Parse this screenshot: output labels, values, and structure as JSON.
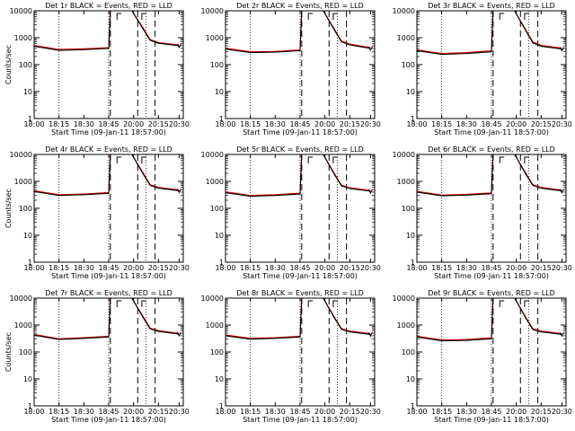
{
  "figure": {
    "ylabel": "Counts/sec",
    "xlabel": "Start Time (09-Jan-11 18:57:00)",
    "yscale": "log",
    "ylim": [
      1,
      10000
    ],
    "ytick_labels": [
      "1",
      "10",
      "100",
      "1000",
      "10000"
    ],
    "xtick_labels": [
      "18:00",
      "18:15",
      "18:30",
      "18:45",
      "20:00",
      "20:15",
      "20:30"
    ],
    "series_colors": {
      "events": "#000000",
      "lld": "#e00000"
    }
  },
  "chart_data": [
    {
      "type": "line",
      "title": "Det 1r BLACK = Events, RED = LLD",
      "x": [
        0,
        30,
        60,
        90,
        92,
        105,
        118,
        132,
        140,
        150,
        175
      ],
      "series": [
        {
          "values": [
            480,
            340,
            360,
            400,
            11000,
            11000,
            11000,
            2000,
            800,
            620,
            500
          ]
        },
        {
          "values": [
            520,
            370,
            390,
            430,
            11000,
            11000,
            11000,
            2200,
            860,
            660,
            540
          ]
        }
      ]
    },
    {
      "type": "line",
      "title": "Det 2r BLACK = Events, RED = LLD",
      "x": [
        0,
        30,
        60,
        90,
        92,
        105,
        118,
        132,
        140,
        150,
        175
      ],
      "series": [
        {
          "values": [
            380,
            280,
            290,
            330,
            11000,
            11000,
            11000,
            1800,
            700,
            540,
            400
          ]
        },
        {
          "values": [
            410,
            300,
            310,
            355,
            11000,
            11000,
            11000,
            1950,
            760,
            580,
            430
          ]
        }
      ]
    },
    {
      "type": "line",
      "title": "Det 3r BLACK = Events, RED = LLD",
      "x": [
        0,
        30,
        60,
        90,
        92,
        105,
        118,
        132,
        140,
        150,
        175
      ],
      "series": [
        {
          "values": [
            330,
            240,
            260,
            300,
            11000,
            11000,
            11000,
            1700,
            640,
            480,
            380
          ]
        },
        {
          "values": [
            355,
            260,
            280,
            325,
            11000,
            11000,
            11000,
            1850,
            690,
            520,
            410
          ]
        }
      ]
    },
    {
      "type": "line",
      "title": "Det 4r BLACK = Events, RED = LLD",
      "x": [
        0,
        30,
        60,
        90,
        92,
        105,
        118,
        132,
        140,
        150,
        175
      ],
      "series": [
        {
          "values": [
            420,
            300,
            320,
            360,
            11000,
            11000,
            11000,
            1800,
            700,
            560,
            450
          ]
        },
        {
          "values": [
            450,
            320,
            340,
            385,
            11000,
            11000,
            11000,
            1950,
            750,
            600,
            480
          ]
        }
      ]
    },
    {
      "type": "line",
      "title": "Det 5r BLACK = Events, RED = LLD",
      "x": [
        0,
        30,
        60,
        90,
        92,
        105,
        118,
        132,
        140,
        150,
        175
      ],
      "series": [
        {
          "values": [
            380,
            280,
            300,
            340,
            11000,
            11000,
            11000,
            1700,
            680,
            540,
            430
          ]
        },
        {
          "values": [
            410,
            300,
            320,
            365,
            11000,
            11000,
            11000,
            1850,
            730,
            580,
            460
          ]
        }
      ]
    },
    {
      "type": "line",
      "title": "Det 6r BLACK = Events, RED = LLD",
      "x": [
        0,
        30,
        60,
        90,
        92,
        105,
        118,
        132,
        140,
        150,
        175
      ],
      "series": [
        {
          "values": [
            400,
            290,
            310,
            350,
            11000,
            11000,
            11000,
            1750,
            700,
            560,
            440
          ]
        },
        {
          "values": [
            430,
            310,
            330,
            375,
            11000,
            11000,
            11000,
            1900,
            750,
            600,
            470
          ]
        }
      ]
    },
    {
      "type": "line",
      "title": "Det 7r BLACK = Events, RED = LLD",
      "x": [
        0,
        30,
        60,
        90,
        92,
        105,
        118,
        132,
        140,
        150,
        175
      ],
      "series": [
        {
          "values": [
            420,
            290,
            320,
            360,
            11000,
            11000,
            11000,
            1800,
            720,
            580,
            460
          ]
        },
        {
          "values": [
            450,
            310,
            340,
            385,
            11000,
            11000,
            11000,
            1950,
            770,
            620,
            490
          ]
        }
      ]
    },
    {
      "type": "line",
      "title": "Det 8r BLACK = Events, RED = LLD",
      "x": [
        0,
        30,
        60,
        90,
        92,
        105,
        118,
        132,
        140,
        150,
        175
      ],
      "series": [
        {
          "values": [
            400,
            300,
            320,
            360,
            11000,
            11000,
            11000,
            1700,
            690,
            560,
            450
          ]
        },
        {
          "values": [
            430,
            320,
            340,
            385,
            11000,
            11000,
            11000,
            1850,
            740,
            600,
            480
          ]
        }
      ]
    },
    {
      "type": "line",
      "title": "Det 9r BLACK = Events, RED = LLD",
      "x": [
        0,
        30,
        60,
        90,
        92,
        105,
        118,
        132,
        140,
        150,
        175
      ],
      "series": [
        {
          "values": [
            360,
            260,
            270,
            310,
            11000,
            11000,
            11000,
            1700,
            680,
            560,
            450
          ]
        },
        {
          "values": [
            385,
            280,
            290,
            335,
            11000,
            11000,
            11000,
            1850,
            730,
            600,
            480
          ]
        }
      ]
    }
  ]
}
